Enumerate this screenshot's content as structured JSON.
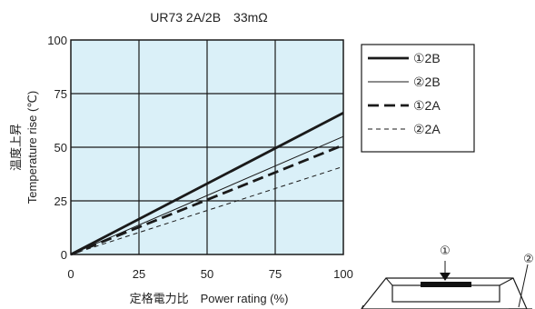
{
  "chart_data": {
    "type": "line",
    "title": "UR73 2A/2B　33mΩ",
    "xlabel": "定格電力比　Power rating (%)",
    "ylabel_jp": "温度上昇",
    "ylabel_en": "Temperature rise (℃)",
    "xlim": [
      0,
      100
    ],
    "ylim": [
      0,
      100
    ],
    "x_ticks": [
      "0",
      "25",
      "50",
      "75",
      "100"
    ],
    "y_ticks": [
      "0",
      "25",
      "50",
      "75",
      "100"
    ],
    "grid": true,
    "plot_background": "#daf0f8",
    "legend_position": "right",
    "series": [
      {
        "name": "①2B",
        "x": [
          0,
          100
        ],
        "y": [
          0,
          66
        ],
        "style": "solid-thick",
        "color": "#1a1a1a"
      },
      {
        "name": "②2B",
        "x": [
          0,
          100
        ],
        "y": [
          0,
          55
        ],
        "style": "solid-thin",
        "color": "#1a1a1a"
      },
      {
        "name": "①2A",
        "x": [
          0,
          100
        ],
        "y": [
          0,
          51
        ],
        "style": "dashed-thick",
        "color": "#1a1a1a"
      },
      {
        "name": "②2A",
        "x": [
          0,
          100
        ],
        "y": [
          0,
          41
        ],
        "style": "dashed-thin",
        "color": "#1a1a1a"
      }
    ]
  },
  "diagram": {
    "callout_1": "①",
    "callout_2": "②"
  }
}
